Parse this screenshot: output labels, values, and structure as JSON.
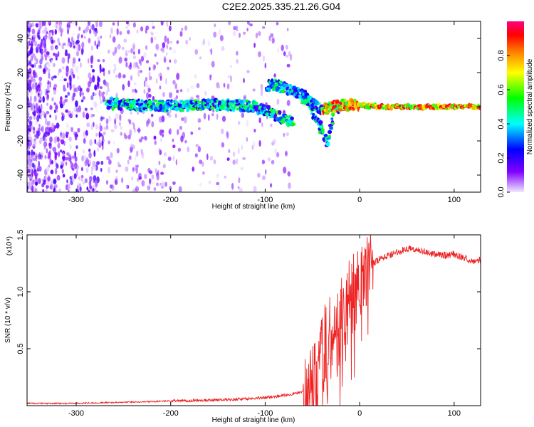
{
  "title": "C2E2.2025.335.21.26.G04",
  "chart_data": [
    {
      "type": "heatmap",
      "xlabel": "Height of straight line (km)",
      "ylabel": "Frequency (Hz)",
      "xlim": [
        -352,
        128
      ],
      "ylim": [
        -50,
        50
      ],
      "x_ticks": [
        -300,
        -200,
        -100,
        0,
        100
      ],
      "y_ticks": [
        -40,
        -20,
        0,
        20,
        40
      ],
      "colorbar": {
        "label": "Normalized spectral amplitude",
        "range": [
          0,
          1
        ],
        "ticks": [
          0.0,
          0.2,
          0.4,
          0.6,
          0.8
        ],
        "tick_labels": [
          "0.0",
          "0.2",
          "0.4",
          "0.6",
          "0.8"
        ],
        "colormap": [
          "#f0e8ff",
          "#8000ff",
          "#0000ff",
          "#00ffff",
          "#00ff00",
          "#ffff00",
          "#ff8000",
          "#ff0000",
          "#ff0080"
        ]
      },
      "tracks": [
        {
          "x": [
            -268,
            -240,
            -200,
            -160,
            -130,
            -110,
            -95,
            -85,
            -75,
            -70
          ],
          "y": [
            2,
            1,
            0.5,
            1,
            1,
            0,
            -3,
            -6,
            -8,
            -9
          ]
        },
        {
          "x": [
            -98,
            -85,
            -75,
            -65,
            -58,
            -52,
            -47,
            -42,
            -38,
            -33,
            -28,
            -20
          ],
          "y": [
            13,
            12,
            10,
            8,
            6,
            2,
            -6,
            -12,
            -17,
            -22,
            -2,
            1
          ]
        },
        {
          "x": [
            -60,
            -50,
            -40,
            -30,
            -20,
            -10,
            0,
            20,
            60,
            100,
            128
          ],
          "y": [
            5,
            3,
            -2,
            0,
            1,
            1,
            1,
            0,
            0,
            0,
            0
          ]
        }
      ]
    },
    {
      "type": "line",
      "xlabel": "Height of straight line (km)",
      "ylabel": "SNR (10 * v/v)",
      "y_multiplier_label": "(x10⁴)",
      "xlim": [
        -352,
        128
      ],
      "ylim": [
        0,
        1.5
      ],
      "x_ticks": [
        -300,
        -200,
        -100,
        0,
        100
      ],
      "y_ticks": [
        0.5,
        1.0,
        1.5
      ],
      "y_tick_labels": [
        "0.5",
        "1.0",
        "1.5"
      ],
      "series": [
        {
          "color": "#ee2222",
          "x": [
            -352,
            -300,
            -250,
            -200,
            -150,
            -120,
            -100,
            -80,
            -60,
            -50,
            -45,
            -40,
            -35,
            -30,
            -25,
            -20,
            -15,
            -10,
            -5,
            0,
            5,
            10,
            15,
            20,
            30,
            40,
            50,
            60,
            70,
            80,
            90,
            100,
            110,
            120,
            128
          ],
          "y": [
            0.02,
            0.02,
            0.03,
            0.04,
            0.05,
            0.06,
            0.07,
            0.09,
            0.12,
            0.2,
            0.3,
            0.45,
            0.55,
            0.6,
            0.65,
            0.7,
            0.8,
            0.9,
            1.0,
            1.1,
            1.15,
            1.2,
            1.25,
            1.28,
            1.32,
            1.35,
            1.38,
            1.37,
            1.35,
            1.33,
            1.32,
            1.33,
            1.3,
            1.27,
            1.28
          ]
        }
      ]
    }
  ]
}
